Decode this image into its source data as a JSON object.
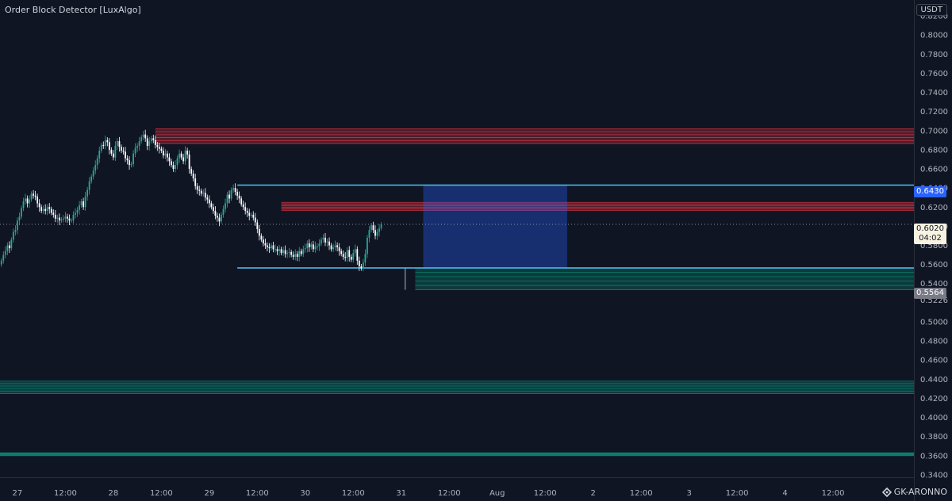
{
  "indicator_title": "Order Block Detector [LuxAlgo]",
  "currency": "USDT",
  "watermark": "GK-ARONNO",
  "colors": {
    "background": "#0f1523",
    "candle_up": "#22ab94",
    "candle_down": "#ffffff",
    "bearish_ob": "#f23645",
    "bullish_ob": "#089981",
    "level_line": "#4fc3f7",
    "projection_box": "#2962ff"
  },
  "price_tags": {
    "upper_level": "0.6430",
    "lower_level": "0.5564",
    "current_price": "0.6020",
    "countdown": "04:02"
  },
  "chart_data": {
    "type": "candlestick",
    "y_axis": {
      "ylim": [
        0.33,
        0.83
      ],
      "ticks": [
        "0.8200",
        "0.8000",
        "0.7800",
        "0.7600",
        "0.7400",
        "0.7200",
        "0.7000",
        "0.6800",
        "0.6600",
        "0.6400",
        "0.6200",
        "0.6000",
        "0.5800",
        "0.5600",
        "0.5400",
        "0.5226",
        "0.5000",
        "0.4800",
        "0.4600",
        "0.4400",
        "0.4200",
        "0.4000",
        "0.3800",
        "0.3600",
        "0.3400"
      ]
    },
    "x_axis": {
      "ticks": [
        "27",
        "12:00",
        "28",
        "12:00",
        "29",
        "12:00",
        "30",
        "12:00",
        "31",
        "12:00",
        "Aug",
        "12:00",
        "2",
        "12:00",
        "3",
        "12:00",
        "4",
        "12:00"
      ],
      "bars_per_day": 48,
      "first_tick_bar": 8
    },
    "candles_close": [
      0.564,
      0.57,
      0.574,
      0.58,
      0.577,
      0.586,
      0.594,
      0.596,
      0.606,
      0.61,
      0.619,
      0.626,
      0.629,
      0.624,
      0.628,
      0.634,
      0.632,
      0.631,
      0.624,
      0.62,
      0.616,
      0.618,
      0.616,
      0.62,
      0.618,
      0.614,
      0.612,
      0.608,
      0.609,
      0.606,
      0.607,
      0.608,
      0.61,
      0.608,
      0.606,
      0.606,
      0.612,
      0.614,
      0.617,
      0.622,
      0.626,
      0.62,
      0.631,
      0.638,
      0.647,
      0.652,
      0.658,
      0.664,
      0.671,
      0.679,
      0.685,
      0.684,
      0.69,
      0.688,
      0.68,
      0.676,
      0.672,
      0.684,
      0.689,
      0.683,
      0.679,
      0.678,
      0.671,
      0.669,
      0.664,
      0.665,
      0.676,
      0.682,
      0.684,
      0.689,
      0.693,
      0.696,
      0.692,
      0.684,
      0.689,
      0.692,
      0.69,
      0.685,
      0.683,
      0.681,
      0.679,
      0.674,
      0.676,
      0.672,
      0.668,
      0.664,
      0.66,
      0.664,
      0.671,
      0.676,
      0.672,
      0.668,
      0.679,
      0.675,
      0.66,
      0.655,
      0.65,
      0.642,
      0.638,
      0.637,
      0.634,
      0.635,
      0.63,
      0.628,
      0.624,
      0.62,
      0.616,
      0.611,
      0.609,
      0.605,
      0.612,
      0.618,
      0.624,
      0.633,
      0.629,
      0.638,
      0.64,
      0.636,
      0.632,
      0.629,
      0.623,
      0.62,
      0.616,
      0.614,
      0.611,
      0.612,
      0.609,
      0.604,
      0.597,
      0.59,
      0.586,
      0.582,
      0.58,
      0.578,
      0.577,
      0.58,
      0.576,
      0.576,
      0.574,
      0.576,
      0.572,
      0.575,
      0.571,
      0.572,
      0.573,
      0.57,
      0.568,
      0.571,
      0.568,
      0.574,
      0.571,
      0.576,
      0.577,
      0.582,
      0.578,
      0.581,
      0.576,
      0.579,
      0.579,
      0.582,
      0.586,
      0.588,
      0.583,
      0.584,
      0.58,
      0.576,
      0.578,
      0.58,
      0.578,
      0.574,
      0.571,
      0.568,
      0.567,
      0.575,
      0.568,
      0.565,
      0.572,
      0.576,
      0.564,
      0.558,
      0.556,
      0.562,
      0.571,
      0.588,
      0.596,
      0.601,
      0.596,
      0.59,
      0.594,
      0.598,
      0.602
    ],
    "order_blocks": {
      "bearish": [
        {
          "top": 0.702,
          "bottom": 0.6865,
          "from_bar": 77
        },
        {
          "top": 0.625,
          "bottom": 0.6165,
          "from_bar": 140
        }
      ],
      "bullish": [
        {
          "top": 0.5564,
          "bottom": 0.5335,
          "from_bar": 207
        },
        {
          "top": 0.438,
          "bottom": 0.425,
          "from_bar": 0
        },
        {
          "top": 0.363,
          "bottom": 0.36,
          "from_bar": 0
        }
      ]
    },
    "levels": [
      {
        "name": "upper",
        "value": 0.643,
        "from_bar": 118
      },
      {
        "name": "lower",
        "value": 0.5564,
        "from_bar": 118
      }
    ],
    "projection_box": {
      "top": 0.643,
      "bottom": 0.5564,
      "from_bar": 211,
      "to_bar": 283
    },
    "current_price_line": 0.602
  }
}
